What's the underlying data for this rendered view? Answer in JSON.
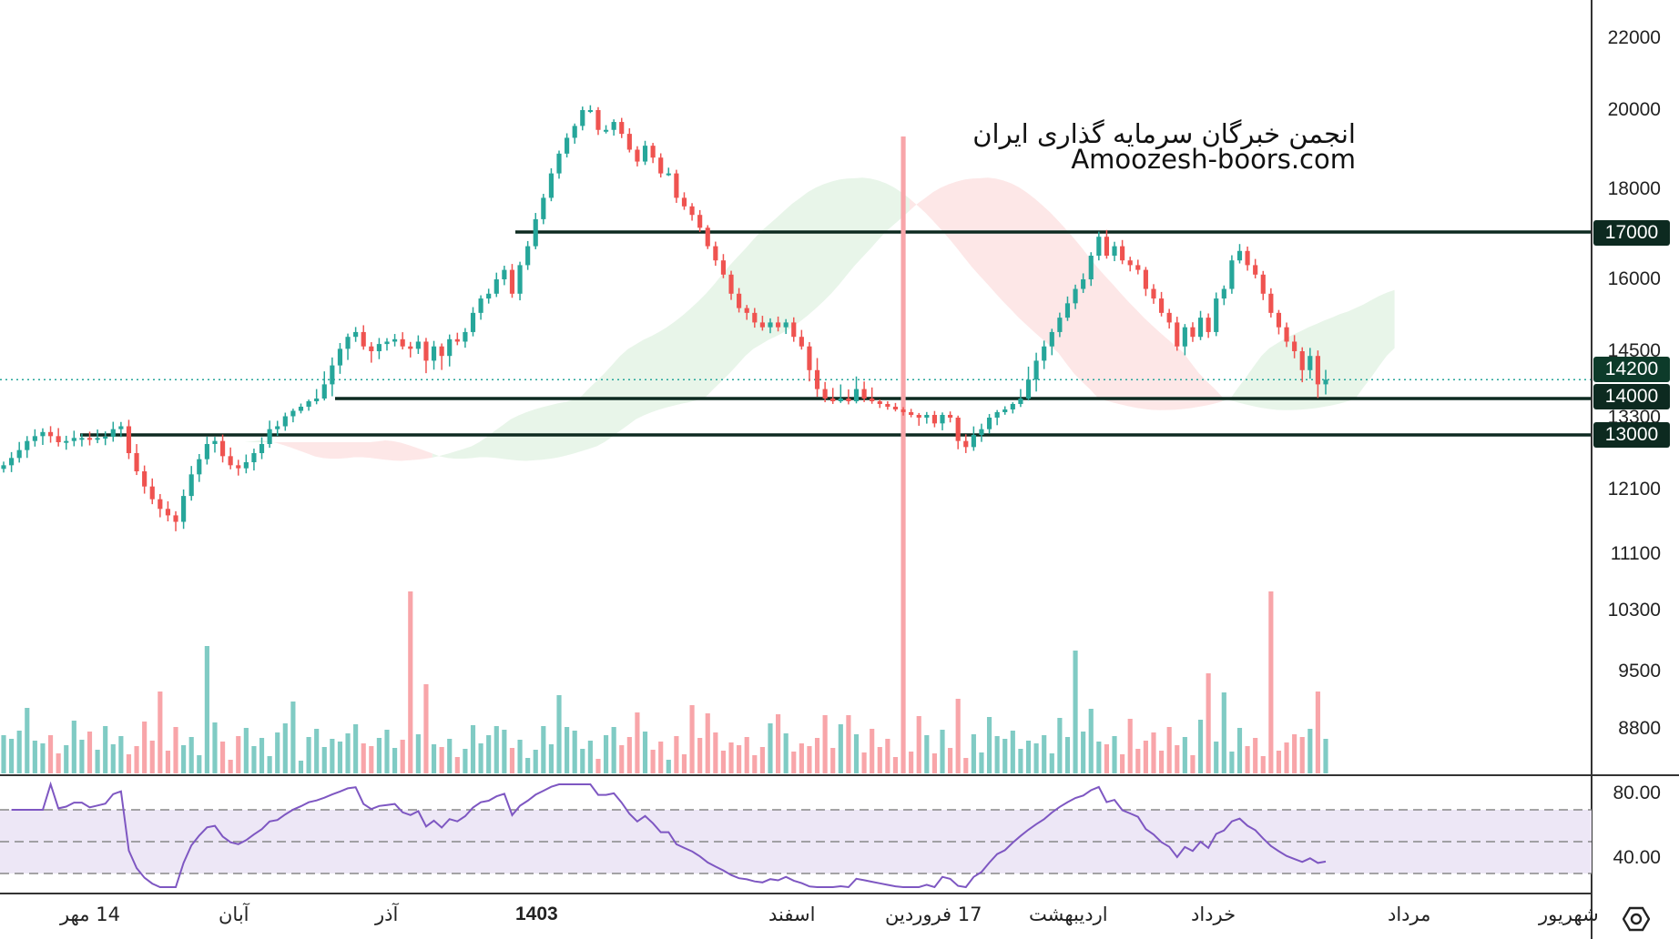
{
  "watermark": {
    "line1": "انجمن خبرگان سرمایه گذاری ایران",
    "line2": "Amoozesh-boors.com"
  },
  "price_axis": {
    "ticks": [
      "22000",
      "20000",
      "18000",
      "16000",
      "14500",
      "13300",
      "12100",
      "11100",
      "10300",
      "9500",
      "8800"
    ]
  },
  "rsi_axis": {
    "ticks": [
      "80.00",
      "40.00"
    ]
  },
  "price_tags": [
    {
      "label": "17000",
      "value": 17000
    },
    {
      "label": "14200",
      "value": 14200
    },
    {
      "label": "14000",
      "value": 14000
    },
    {
      "label": "13000",
      "value": 13000
    }
  ],
  "time_axis": {
    "labels": [
      "14 مهر",
      "آبان",
      "آذر",
      "1403",
      "اسفند",
      "17 فروردین",
      "اردیبهشت",
      "خرداد",
      "مرداد",
      "شهریور"
    ]
  },
  "colors": {
    "up": "#26a69a",
    "down": "#ef5350",
    "cloud_bull": "#e8f5e9",
    "cloud_bear": "#fde7e7",
    "rsi_line": "#7e57c2",
    "rsi_band": "#ede7f6",
    "level_line": "#0d2a20",
    "tag_bg": "#0d2a20"
  },
  "chart_data": {
    "type": "candlestick",
    "horizontal_levels": [
      17000,
      14000,
      13000
    ],
    "last_price": 14200,
    "rsi_levels": [
      70,
      50,
      30
    ],
    "close_series": [
      12500,
      12620,
      12750,
      12900,
      12980,
      13050,
      12980,
      12880,
      12900,
      12950,
      12950,
      12930,
      12950,
      12970,
      13100,
      13150,
      12700,
      12400,
      12150,
      11950,
      11800,
      11700,
      11600,
      12000,
      12350,
      12600,
      12850,
      12900,
      12650,
      12500,
      12450,
      12550,
      12700,
      12850,
      13100,
      13150,
      13350,
      13550,
      13700,
      13900,
      14000,
      14150,
      14350,
      14550,
      14800,
      14900,
      14600,
      14500,
      14650,
      14700,
      14750,
      14600,
      14550,
      14700,
      14400,
      14600,
      14450,
      14750,
      14700,
      14900,
      15300,
      15600,
      15700,
      16000,
      16200,
      15700,
      16300,
      16700,
      17300,
      17800,
      18400,
      18900,
      19300,
      19600,
      20000,
      20000,
      19500,
      19500,
      19700,
      19400,
      19000,
      18700,
      19100,
      18800,
      18400,
      18400,
      17800,
      17600,
      17400,
      17100,
      16700,
      16400,
      16100,
      15700,
      15400,
      15300,
      15100,
      15000,
      15100,
      15000,
      15100,
      14800,
      14600,
      14300,
      14100,
      14000,
      13900,
      14000,
      13900,
      14100,
      14000,
      13900,
      13800,
      13700,
      13600,
      13500,
      13400,
      13300,
      13400,
      13200,
      13400,
      13300,
      12900,
      12800,
      13000,
      13100,
      13300,
      13500,
      13600,
      13800,
      14000,
      14200,
      14400,
      14600,
      14900,
      15200,
      15500,
      15800,
      16000,
      16500,
      16900,
      16500,
      16700,
      16400,
      16300,
      16200,
      15800,
      15600,
      15300,
      15100,
      14600,
      15000,
      14800,
      15200,
      14900,
      15600,
      15800,
      16400,
      16600,
      16300,
      16100,
      15700,
      15300,
      15000,
      14700,
      14500,
      14300,
      14450,
      14150,
      14200
    ]
  }
}
